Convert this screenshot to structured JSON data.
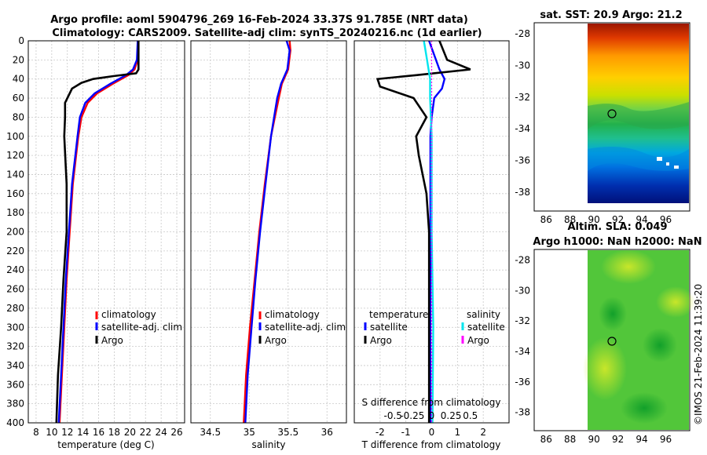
{
  "title": {
    "line1": "Argo profile: aoml 5904796_269 16-Feb-2024 33.37S 91.785E (NRT data)",
    "line2": "Climatology: CARS2009. Satellite-adj clim: synTS_20240216.nc (1d earlier)"
  },
  "colors": {
    "climatology": "#ff0000",
    "satellite": "#0000ff",
    "argo": "#000000",
    "cyan": "#00e5ee",
    "magenta": "#ff00ff",
    "grid": "#c8c8c8"
  },
  "chart_data": [
    {
      "type": "line",
      "id": "temperature",
      "xlabel": "temperature (deg C)",
      "ylabel": "",
      "xlim": [
        7,
        27
      ],
      "ylim": [
        400,
        0
      ],
      "xticks": [
        "8",
        "10",
        "12",
        "14",
        "16",
        "18",
        "20",
        "22",
        "24",
        "26"
      ],
      "yticks": [
        "0",
        "20",
        "40",
        "60",
        "80",
        "100",
        "120",
        "140",
        "160",
        "180",
        "200",
        "220",
        "240",
        "260",
        "280",
        "300",
        "320",
        "340",
        "360",
        "380",
        "400"
      ],
      "legend": [
        "climatology",
        "satellite-adj. clim",
        "Argo"
      ],
      "series": [
        {
          "name": "climatology",
          "color": "#ff0000",
          "depth": [
            0,
            20,
            30,
            36,
            45,
            55,
            65,
            80,
            100,
            150,
            200,
            250,
            300,
            350,
            400
          ],
          "values": [
            21.1,
            21.0,
            20.6,
            19.8,
            17.8,
            15.8,
            14.6,
            13.8,
            13.4,
            12.7,
            12.3,
            11.9,
            11.6,
            11.3,
            11.0
          ]
        },
        {
          "name": "satellite-adj. clim",
          "color": "#0000ff",
          "depth": [
            0,
            20,
            30,
            36,
            45,
            55,
            65,
            80,
            100,
            150,
            200,
            250,
            300,
            350,
            400
          ],
          "values": [
            21.0,
            20.9,
            20.4,
            19.5,
            17.5,
            15.5,
            14.3,
            13.6,
            13.3,
            12.6,
            12.2,
            11.8,
            11.5,
            11.2,
            10.9
          ]
        },
        {
          "name": "Argo",
          "color": "#000000",
          "depth": [
            0,
            30,
            34,
            37,
            40,
            44,
            50,
            60,
            65,
            80,
            100,
            150,
            200,
            250,
            300,
            350,
            400
          ],
          "values": [
            21.1,
            21.1,
            20.8,
            17.9,
            15.3,
            13.8,
            12.6,
            12.0,
            11.7,
            11.7,
            11.6,
            11.9,
            11.9,
            11.5,
            11.2,
            10.8,
            10.6
          ]
        }
      ]
    },
    {
      "type": "line",
      "id": "salinity",
      "xlabel": "salinity",
      "ylabel": "",
      "xlim": [
        34.25,
        36.25
      ],
      "ylim": [
        400,
        0
      ],
      "xticks": [
        "34.5",
        "35",
        "35.5",
        "36"
      ],
      "yticks": [],
      "legend": [
        "climatology",
        "satellite-adj. clim",
        "Argo"
      ],
      "series": [
        {
          "name": "climatology",
          "color": "#ff0000",
          "depth": [
            0,
            10,
            30,
            45,
            60,
            80,
            100,
            150,
            200,
            250,
            300,
            350,
            400
          ],
          "values": [
            35.52,
            35.53,
            35.5,
            35.42,
            35.38,
            35.33,
            35.28,
            35.2,
            35.13,
            35.07,
            35.01,
            34.96,
            34.93
          ]
        },
        {
          "name": "satellite-adj. clim",
          "color": "#0000ff",
          "depth": [
            0,
            10,
            30,
            45,
            60,
            80,
            100,
            150,
            200,
            250,
            300,
            350,
            400
          ],
          "values": [
            35.48,
            35.52,
            35.49,
            35.41,
            35.36,
            35.32,
            35.28,
            35.21,
            35.14,
            35.08,
            35.03,
            34.98,
            34.95
          ]
        }
      ]
    },
    {
      "type": "line",
      "id": "difference",
      "xlabel": "T difference from climatology",
      "ylabel": "",
      "top_label": "S difference from climatology",
      "xlim": [
        -3,
        3
      ],
      "ylim": [
        400,
        0
      ],
      "xticks": [
        "-2",
        "-1",
        "0",
        "1",
        "2"
      ],
      "top_ticks": [
        "-0.5",
        "-0.25",
        "0",
        "0.25",
        "0.5"
      ],
      "legend_left_title": "temperature",
      "legend_right_title": "salinity",
      "legend_left": [
        "satellite",
        "Argo"
      ],
      "legend_right": [
        "satellite",
        "Argo"
      ],
      "series": [
        {
          "name": "T satellite",
          "color": "#0000ff",
          "depth": [
            0,
            30,
            40,
            50,
            60,
            80,
            100,
            150,
            200,
            300,
            400
          ],
          "values": [
            -0.1,
            0.3,
            0.5,
            0.4,
            0.1,
            0.0,
            -0.05,
            -0.05,
            -0.05,
            -0.05,
            -0.05
          ]
        },
        {
          "name": "T Argo",
          "color": "#000000",
          "depth": [
            0,
            20,
            30,
            36,
            40,
            48,
            60,
            80,
            100,
            120,
            160,
            200,
            250,
            300,
            350,
            400
          ],
          "values": [
            0.3,
            0.6,
            1.5,
            -0.6,
            -2.1,
            -2.0,
            -0.7,
            -0.2,
            -0.6,
            -0.5,
            -0.2,
            -0.1,
            -0.1,
            -0.1,
            -0.1,
            -0.1
          ]
        },
        {
          "name": "S satellite",
          "color": "#00e5ee",
          "depth": [
            0,
            20,
            40,
            60,
            100,
            200,
            300,
            400
          ],
          "values": [
            -0.1,
            -0.06,
            -0.02,
            -0.02,
            0.0,
            0.0,
            0.02,
            0.01
          ]
        },
        {
          "name": "S Argo",
          "color": "#ff00ff",
          "depth": [
            0,
            20,
            40,
            60,
            100,
            200,
            300,
            400
          ],
          "values": [
            0.0,
            0.0,
            0.0,
            0.0,
            0.0,
            0.0,
            0.0,
            0.0
          ]
        }
      ]
    }
  ],
  "maps": {
    "sst": {
      "title": "sat. SST: 20.9 Argo: 21.2",
      "xticks": [
        "86",
        "88",
        "90",
        "92",
        "94",
        "96"
      ],
      "yticks": [
        "-28",
        "-30",
        "-32",
        "-34",
        "-36",
        "-38"
      ]
    },
    "sla": {
      "title1": "Altim. SLA: 0.049",
      "title2": "Argo h1000: NaN h2000: NaN",
      "xticks": [
        "86",
        "88",
        "90",
        "92",
        "94",
        "96"
      ],
      "yticks": [
        "-28",
        "-30",
        "-32",
        "-34",
        "-36",
        "-38"
      ]
    }
  },
  "stamp": "©IMOS 21-Feb-2024 11:39:20"
}
